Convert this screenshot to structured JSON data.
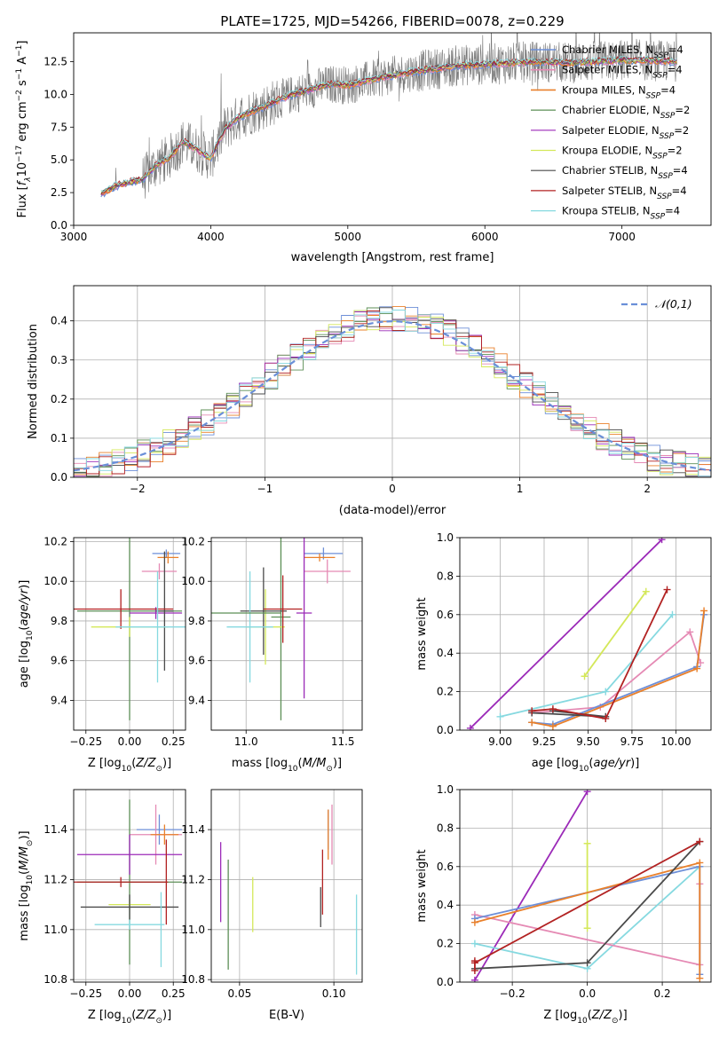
{
  "figure": {
    "title": "PLATE=1725, MJD=54266, FIBERID=0078, z=0.229"
  },
  "chart_data": [
    {
      "id": "spectrum",
      "type": "line",
      "title": "PLATE=1725, MJD=54266, FIBERID=0078, z=0.229",
      "xlabel": "wavelength [Angstrom, rest frame]",
      "ylabel": "Flux [f_λ 10^-17 erg cm^-2 s^-1 A^-1]",
      "xlim": [
        3000,
        7650
      ],
      "ylim": [
        0,
        14.7
      ],
      "xticks": [
        3000,
        4000,
        5000,
        6000,
        7000
      ],
      "yticks": [
        0.0,
        2.5,
        5.0,
        7.5,
        10.0,
        12.5
      ],
      "legend_position": "top-right",
      "data": {
        "name": "data",
        "x": [
          3200,
          3300,
          3400,
          3500,
          3600,
          3700,
          3800,
          3900,
          4000,
          4100,
          4200,
          4300,
          4400,
          4500,
          4600,
          4700,
          4800,
          4900,
          5000,
          5200,
          5400,
          5600,
          5800,
          6000,
          6200,
          6400,
          6600,
          6800,
          7000,
          7200,
          7400
        ],
        "y": [
          2.4,
          3.0,
          3.3,
          3.5,
          4.6,
          5.2,
          6.4,
          5.8,
          5.1,
          7.3,
          8.2,
          8.7,
          9.1,
          9.6,
          10.0,
          10.3,
          10.6,
          10.8,
          10.7,
          11.2,
          11.6,
          11.9,
          12.2,
          12.3,
          12.4,
          12.5,
          12.4,
          12.5,
          12.6,
          12.6,
          12.5
        ]
      },
      "series": [
        {
          "name": "Chabrier MILES, N_SSP=4",
          "color": "#6d8fd8",
          "lw": 1.2
        },
        {
          "name": "Salpeter MILES, N_SSP=4",
          "color": "#e58ab4",
          "lw": 1.2
        },
        {
          "name": "Kroupa MILES, N_SSP=4",
          "color": "#e9802b",
          "lw": 1.2
        },
        {
          "name": "Chabrier ELODIE, N_SSP=2",
          "color": "#5c8f56",
          "lw": 0.8
        },
        {
          "name": "Salpeter ELODIE, N_SSP=2",
          "color": "#9b2ab8",
          "lw": 0.8
        },
        {
          "name": "Kroupa ELODIE, N_SSP=2",
          "color": "#d4e85a",
          "lw": 0.8
        },
        {
          "name": "Chabrier STELIB, N_SSP=4",
          "color": "#4a4a4a",
          "lw": 0.8
        },
        {
          "name": "Salpeter STELIB, N_SSP=4",
          "color": "#b22222",
          "lw": 0.8
        },
        {
          "name": "Kroupa STELIB, N_SSP=4",
          "color": "#86d9e0",
          "lw": 0.8
        }
      ]
    },
    {
      "id": "residuals",
      "type": "histogram",
      "xlabel": "(data-model)/error",
      "ylabel": "Normed distribution",
      "xlim": [
        -2.5,
        2.5
      ],
      "ylim": [
        0,
        0.49
      ],
      "xticks": [
        -2,
        -1,
        0,
        1,
        2
      ],
      "yticks": [
        0.0,
        0.1,
        0.2,
        0.3,
        0.4
      ],
      "grid": true,
      "bin_edges_start": -2.5,
      "bin_width": 0.1,
      "legend_position": "top-right",
      "reference": {
        "name": "𝒩(0,1)",
        "color": "#6a8fd8",
        "style": "dashed"
      }
    },
    {
      "id": "age_vs_Z",
      "type": "errorbar",
      "xlabel": "Z [log10(Z/Z⊙)]",
      "ylabel": "age [log10(age/yr)]",
      "xlim": [
        -0.32,
        0.32
      ],
      "ylim": [
        9.25,
        10.22
      ],
      "xticks": [
        -0.25,
        0.0,
        0.25
      ],
      "xticklabels": [
        "−0.25",
        "0.00",
        "0.25"
      ],
      "yticks": [
        9.4,
        9.6,
        9.8,
        10.0,
        10.2
      ],
      "grid": true,
      "points": [
        {
          "color": "#6d8fd8",
          "x": 0.21,
          "xerr": 0.08,
          "y": 10.14,
          "yerr": 0.02
        },
        {
          "color": "#e58ab4",
          "x": 0.17,
          "xerr": 0.1,
          "y": 10.05,
          "yerr": 0.04
        },
        {
          "color": "#e9802b",
          "x": 0.22,
          "xerr": 0.06,
          "y": 10.12,
          "yerr": 0.03
        },
        {
          "color": "#5c8f56",
          "x": 0.0,
          "xerr": 0.3,
          "y": 9.85,
          "yerr": 0.55
        },
        {
          "color": "#9b2ab8",
          "x": 0.15,
          "xerr": 0.15,
          "y": 9.84,
          "yerr": 0.03
        },
        {
          "color": "#d4e85a",
          "x": 0.0,
          "xerr": 0.22,
          "y": 9.77,
          "yerr": 0.05
        },
        {
          "color": "#4a4a4a",
          "x": 0.2,
          "xerr": 0.05,
          "y": 9.85,
          "yerr": 0.3
        },
        {
          "color": "#b22222",
          "x": -0.05,
          "xerr": 0.3,
          "y": 9.86,
          "yerr": 0.1
        },
        {
          "color": "#86d9e0",
          "x": 0.16,
          "xerr": 0.24,
          "y": 9.77,
          "yerr": 0.28
        }
      ]
    },
    {
      "id": "age_vs_mass",
      "type": "errorbar",
      "xlabel": "mass [log10(M/M⊙)]",
      "xlim": [
        10.82,
        11.6
      ],
      "ylim": [
        9.25,
        10.22
      ],
      "xticks": [
        11.0,
        11.5
      ],
      "xticklabels": [
        "11.0",
        "11.5"
      ],
      "yticks": [
        9.4,
        9.6,
        9.8,
        10.0,
        10.2
      ],
      "grid": true,
      "points": [
        {
          "color": "#6d8fd8",
          "x": 11.4,
          "xerr": 0.1,
          "y": 10.14,
          "yerr": 0.03
        },
        {
          "color": "#e58ab4",
          "x": 11.42,
          "xerr": 0.12,
          "y": 10.05,
          "yerr": 0.06
        },
        {
          "color": "#e9802b",
          "x": 11.38,
          "xerr": 0.08,
          "y": 10.12,
          "yerr": 0.02
        },
        {
          "color": "#5c8f56",
          "x": 11.18,
          "xerr": 0.05,
          "y": 9.82,
          "yerr": 0.52
        },
        {
          "color": "#9b2ab8",
          "x": 11.3,
          "xerr": 0.04,
          "y": 9.84,
          "yerr": 0.43
        },
        {
          "color": "#d4e85a",
          "x": 11.1,
          "xerr": 0.1,
          "y": 9.77,
          "yerr": 0.19
        },
        {
          "color": "#4a4a4a",
          "x": 11.09,
          "xerr": 0.12,
          "y": 9.85,
          "yerr": 0.22
        },
        {
          "color": "#b22222",
          "x": 11.19,
          "xerr": 0.1,
          "y": 9.86,
          "yerr": 0.17
        },
        {
          "color": "#86d9e0",
          "x": 11.02,
          "xerr": 0.12,
          "y": 9.77,
          "yerr": 0.28
        },
        {
          "color": "#5c8f56",
          "x": 11.0,
          "xerr": 0.18,
          "y": 9.84,
          "yerr": 0.0
        }
      ]
    },
    {
      "id": "massweight_vs_age",
      "type": "line",
      "xlabel": "age [log10(age/yr)]",
      "ylabel": "mass weight",
      "xlim": [
        8.77,
        10.2
      ],
      "ylim": [
        0,
        1.0
      ],
      "xticks": [
        9.0,
        9.25,
        9.5,
        9.75,
        10.0
      ],
      "xticklabels": [
        "9.00",
        "9.25",
        "9.50",
        "9.75",
        "10.00"
      ],
      "yticks": [
        0.0,
        0.2,
        0.4,
        0.6,
        0.8,
        1.0
      ],
      "grid": true,
      "series": [
        {
          "color": "#9b2ab8",
          "x": [
            8.83,
            9.92
          ],
          "y": [
            0.01,
            0.99
          ]
        },
        {
          "color": "#d4e85a",
          "x": [
            9.48,
            9.83
          ],
          "y": [
            0.28,
            0.72
          ]
        },
        {
          "color": "#86d9e0",
          "x": [
            9.0,
            9.6,
            9.98
          ],
          "y": [
            0.07,
            0.2,
            0.6
          ]
        },
        {
          "color": "#e58ab4",
          "x": [
            9.18,
            9.57,
            10.08,
            10.14
          ],
          "y": [
            0.09,
            0.12,
            0.51,
            0.35
          ]
        },
        {
          "color": "#6d8fd8",
          "x": [
            9.18,
            9.3,
            10.12,
            10.16
          ],
          "y": [
            0.04,
            0.03,
            0.33,
            0.6
          ]
        },
        {
          "color": "#e9802b",
          "x": [
            9.18,
            9.3,
            10.12,
            10.16
          ],
          "y": [
            0.04,
            0.02,
            0.32,
            0.62
          ]
        },
        {
          "color": "#4a4a4a",
          "x": [
            9.18,
            9.6,
            9.3
          ],
          "y": [
            0.09,
            0.07,
            0.1
          ]
        },
        {
          "color": "#b22222",
          "x": [
            9.18,
            9.3,
            9.6,
            9.95
          ],
          "y": [
            0.1,
            0.11,
            0.06,
            0.73
          ]
        }
      ]
    },
    {
      "id": "mass_vs_Z",
      "type": "errorbar",
      "xlabel": "Z [log10(Z/Z⊙)]",
      "ylabel": "mass [log10(M/M⊙)]",
      "xlim": [
        -0.32,
        0.32
      ],
      "ylim": [
        10.79,
        11.56
      ],
      "xticks": [
        -0.25,
        0.0,
        0.25
      ],
      "xticklabels": [
        "−0.25",
        "0.00",
        "0.25"
      ],
      "yticks": [
        10.8,
        11.0,
        11.2,
        11.4
      ],
      "grid": true,
      "points": [
        {
          "color": "#6d8fd8",
          "x": 0.17,
          "xerr": 0.13,
          "y": 11.4,
          "yerr": 0.06
        },
        {
          "color": "#e58ab4",
          "x": 0.15,
          "xerr": 0.15,
          "y": 11.38,
          "yerr": 0.12
        },
        {
          "color": "#e9802b",
          "x": 0.2,
          "xerr": 0.08,
          "y": 11.38,
          "yerr": 0.04
        },
        {
          "color": "#5c8f56",
          "x": 0.0,
          "xerr": 0.3,
          "y": 11.19,
          "yerr": 0.33
        },
        {
          "color": "#9b2ab8",
          "x": 0.0,
          "xerr": 0.3,
          "y": 11.3,
          "yerr": 0.08
        },
        {
          "color": "#d4e85a",
          "x": 0.0,
          "xerr": 0.12,
          "y": 11.1,
          "yerr": 0.02
        },
        {
          "color": "#4a4a4a",
          "x": 0.0,
          "xerr": 0.28,
          "y": 11.09,
          "yerr": 0.05
        },
        {
          "color": "#b22222",
          "x": -0.05,
          "xerr": 0.27,
          "y": 11.19,
          "yerr": 0.02
        },
        {
          "color": "#86d9e0",
          "x": 0.0,
          "xerr": 0.2,
          "y": 11.02,
          "yerr": 0.02
        },
        {
          "color": "#b22222",
          "x": 0.21,
          "xerr": 0.0,
          "y": 11.19,
          "yerr": 0.17
        },
        {
          "color": "#86d9e0",
          "x": 0.18,
          "xerr": 0.0,
          "y": 11.0,
          "yerr": 0.15
        }
      ]
    },
    {
      "id": "mass_vs_EBV",
      "type": "errorbar",
      "xlabel": "E(B-V)",
      "xlim": [
        0.035,
        0.115
      ],
      "ylim": [
        10.79,
        11.56
      ],
      "xticks": [
        0.05,
        0.1
      ],
      "xticklabels": [
        "0.05",
        "0.10"
      ],
      "yticks": [
        10.8,
        11.0,
        11.2,
        11.4
      ],
      "grid": true,
      "points": [
        {
          "color": "#6d8fd8",
          "x": 0.097,
          "xerr": 0.0,
          "y": 11.4,
          "yerr": 0.08
        },
        {
          "color": "#e58ab4",
          "x": 0.099,
          "xerr": 0.0,
          "y": 11.38,
          "yerr": 0.12
        },
        {
          "color": "#e9802b",
          "x": 0.097,
          "xerr": 0.0,
          "y": 11.38,
          "yerr": 0.1
        },
        {
          "color": "#5c8f56",
          "x": 0.044,
          "xerr": 0.0,
          "y": 11.06,
          "yerr": 0.22
        },
        {
          "color": "#9b2ab8",
          "x": 0.04,
          "xerr": 0.0,
          "y": 11.19,
          "yerr": 0.16
        },
        {
          "color": "#d4e85a",
          "x": 0.057,
          "xerr": 0.0,
          "y": 11.1,
          "yerr": 0.11
        },
        {
          "color": "#4a4a4a",
          "x": 0.093,
          "xerr": 0.0,
          "y": 11.09,
          "yerr": 0.08
        },
        {
          "color": "#b22222",
          "x": 0.094,
          "xerr": 0.0,
          "y": 11.19,
          "yerr": 0.13
        },
        {
          "color": "#86d9e0",
          "x": 0.112,
          "xerr": 0.0,
          "y": 10.98,
          "yerr": 0.16
        }
      ]
    },
    {
      "id": "massweight_vs_Z",
      "type": "line",
      "xlabel": "Z [log10(Z/Z⊙)]",
      "ylabel": "mass weight",
      "xlim": [
        -0.34,
        0.33
      ],
      "ylim": [
        0,
        1.0
      ],
      "xticks": [
        -0.2,
        0.0,
        0.2
      ],
      "xticklabels": [
        "−0.2",
        "0.0",
        "0.2"
      ],
      "yticks": [
        0.0,
        0.2,
        0.4,
        0.6,
        0.8,
        1.0
      ],
      "grid": true,
      "series": [
        {
          "color": "#9b2ab8",
          "x": [
            -0.3,
            0.0
          ],
          "y": [
            0.01,
            0.99
          ]
        },
        {
          "color": "#d4e85a",
          "x": [
            0.0,
            0.0
          ],
          "y": [
            0.28,
            0.72
          ]
        },
        {
          "color": "#86d9e0",
          "x": [
            -0.3,
            0.0,
            0.3
          ],
          "y": [
            0.2,
            0.07,
            0.6
          ]
        },
        {
          "color": "#e58ab4",
          "x": [
            -0.3,
            0.3,
            0.3
          ],
          "y": [
            0.35,
            0.09,
            0.51
          ]
        },
        {
          "color": "#6d8fd8",
          "x": [
            -0.3,
            0.3,
            0.3
          ],
          "y": [
            0.33,
            0.6,
            0.04
          ]
        },
        {
          "color": "#e9802b",
          "x": [
            -0.3,
            0.3,
            0.3
          ],
          "y": [
            0.31,
            0.62,
            0.02
          ]
        },
        {
          "color": "#4a4a4a",
          "x": [
            -0.3,
            0.0,
            0.3
          ],
          "y": [
            0.07,
            0.1,
            0.73
          ]
        },
        {
          "color": "#b22222",
          "x": [
            -0.3,
            0.3
          ],
          "y": [
            0.1,
            0.73
          ]
        },
        {
          "color": "#b22222",
          "x": [
            -0.3,
            -0.3
          ],
          "y": [
            0.06,
            0.11
          ]
        }
      ]
    }
  ]
}
